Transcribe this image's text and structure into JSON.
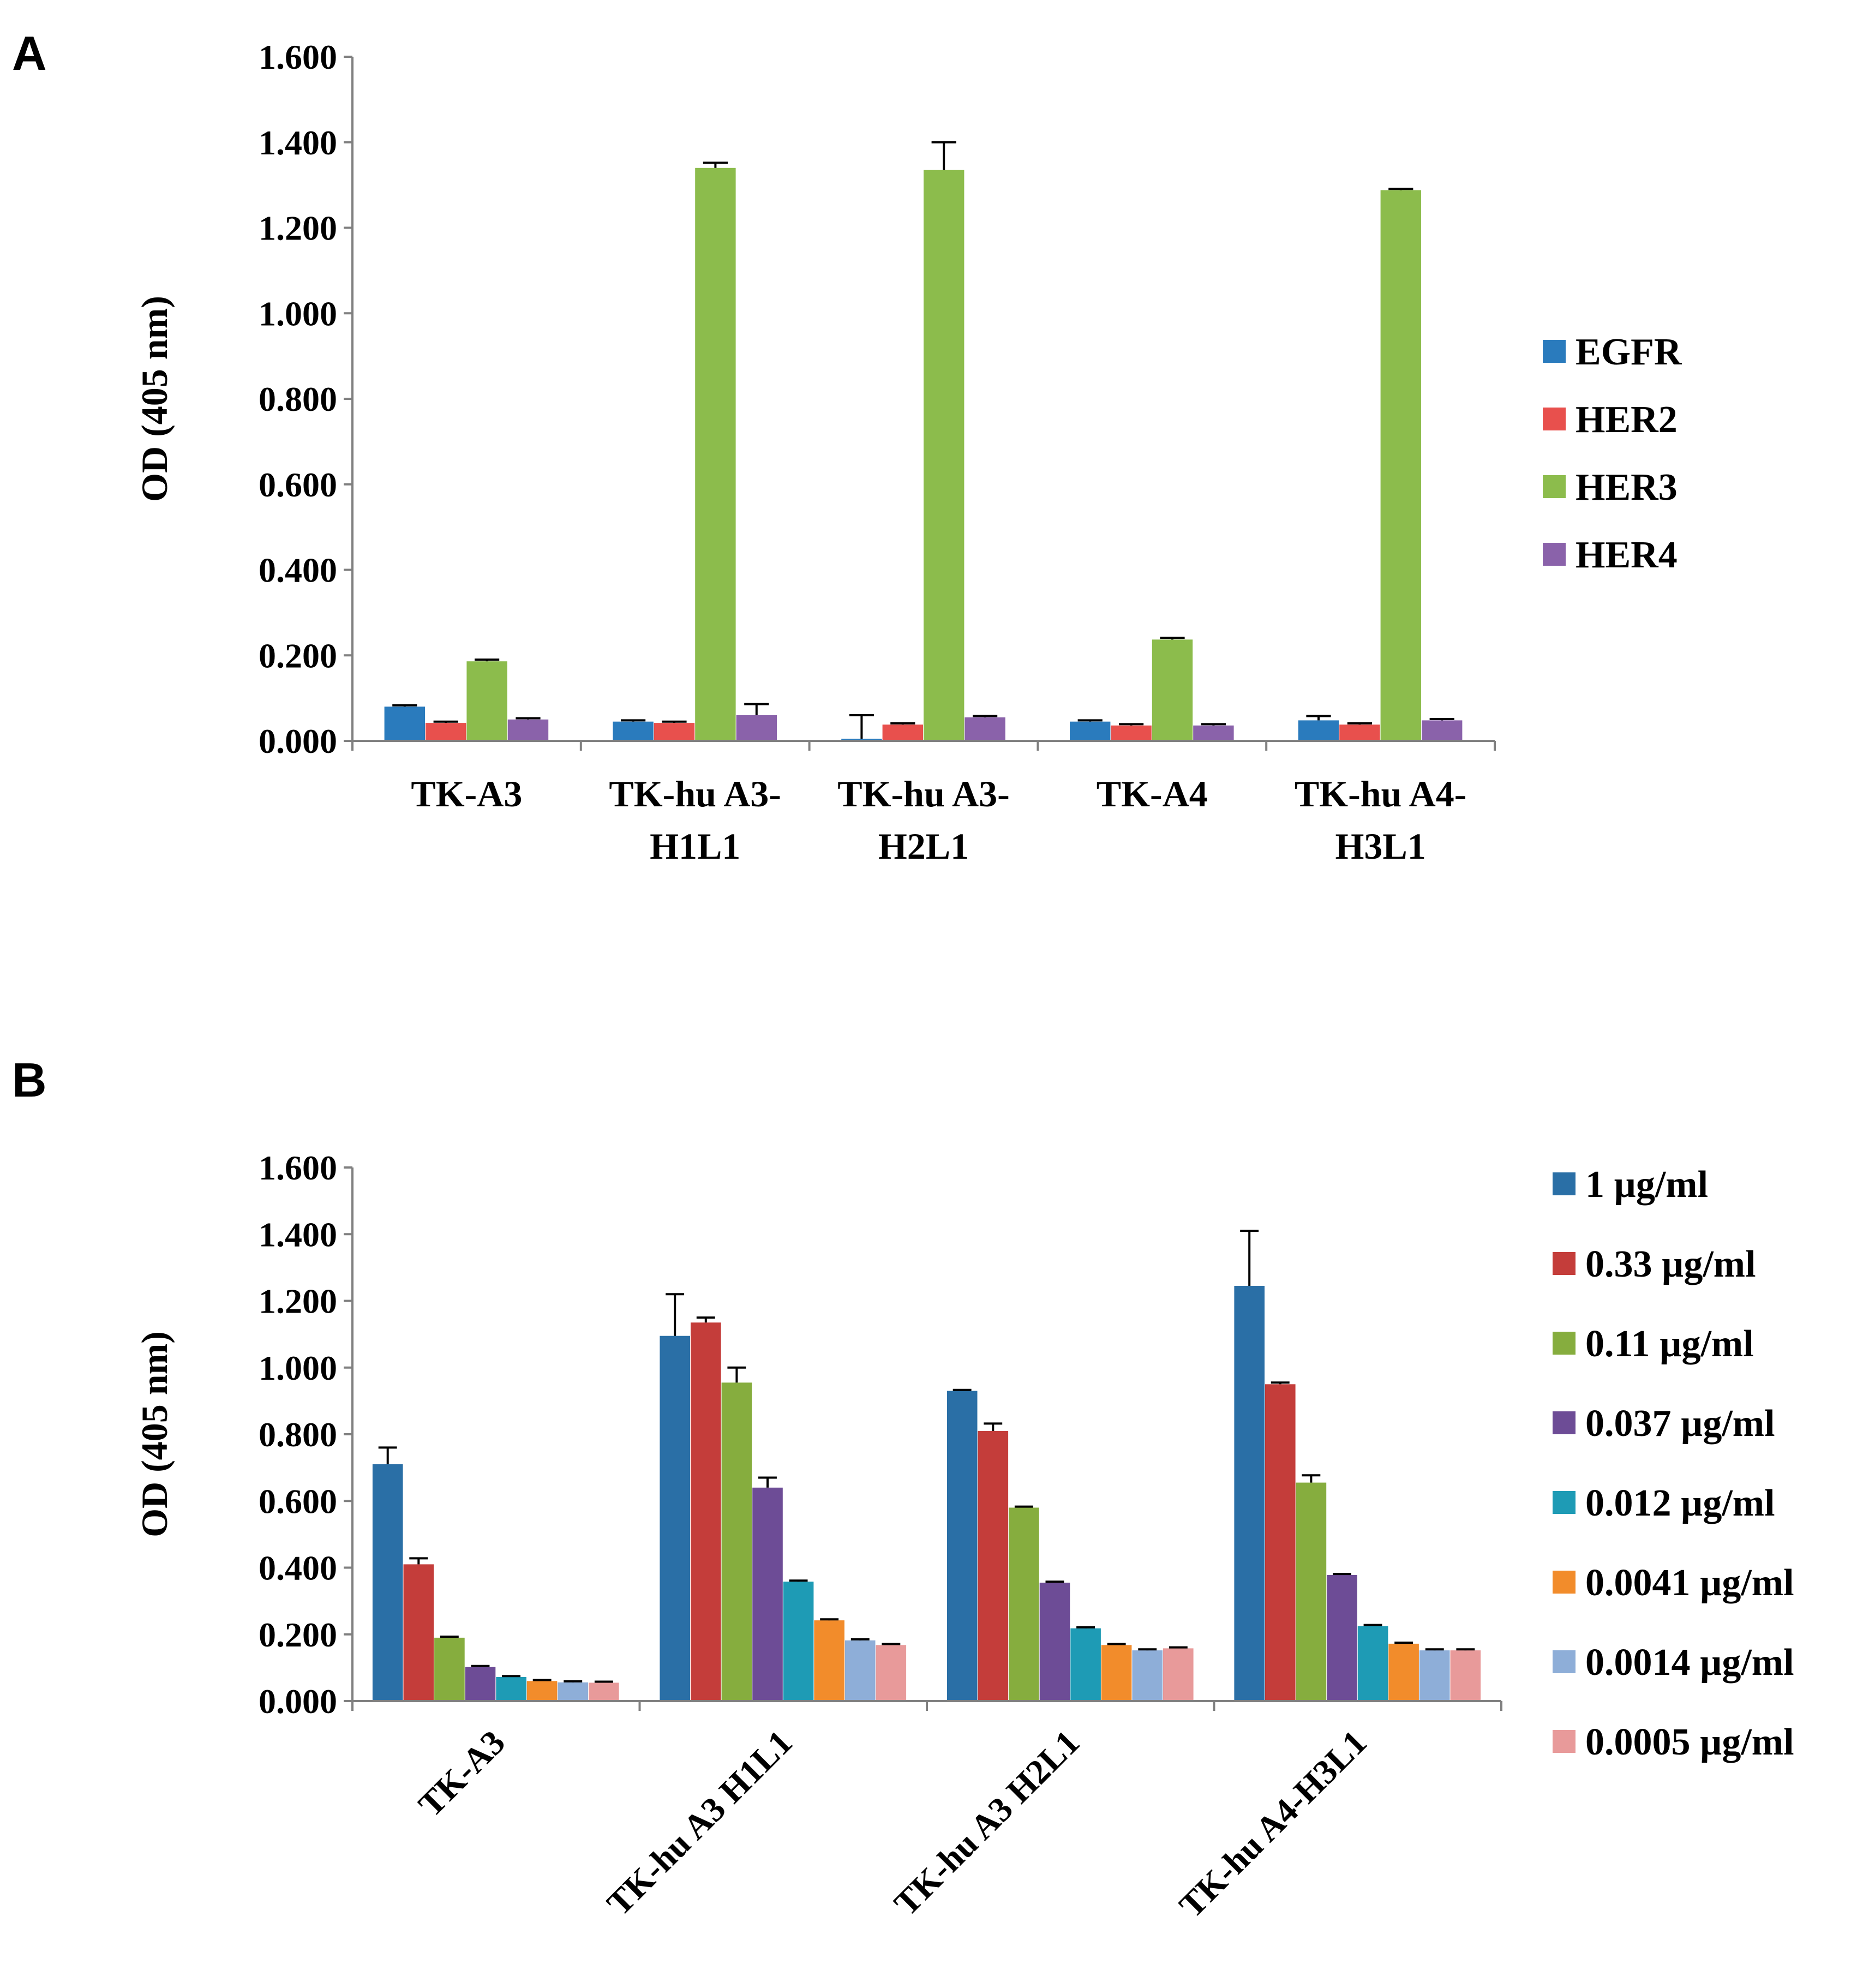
{
  "panels": [
    {
      "letter": "A"
    },
    {
      "letter": "B"
    }
  ],
  "chart_data": [
    {
      "type": "bar",
      "panel": "A",
      "title": "",
      "xlabel": "",
      "ylabel": "OD (405 nm)",
      "ylim": [
        0,
        1.6
      ],
      "yticks": [
        "0.000",
        "0.200",
        "0.400",
        "0.600",
        "0.800",
        "1.000",
        "1.200",
        "1.400",
        "1.600"
      ],
      "grid": false,
      "legend_position": "right",
      "categories": [
        [
          "TK-A3"
        ],
        [
          "TK-hu A3-",
          "H1L1"
        ],
        [
          "TK-hu A3-",
          "H2L1"
        ],
        [
          "TK-A4"
        ],
        [
          "TK-hu A4-",
          "H3L1"
        ]
      ],
      "series": [
        {
          "name": "EGFR",
          "color": "#2a7bbd",
          "values": [
            0.08,
            0.045,
            0.005,
            0.045,
            0.048
          ],
          "errors": [
            0.003,
            0.003,
            0.055,
            0.003,
            0.01
          ]
        },
        {
          "name": "HER2",
          "color": "#e8504d",
          "values": [
            0.042,
            0.042,
            0.038,
            0.036,
            0.038
          ],
          "errors": [
            0.003,
            0.003,
            0.003,
            0.003,
            0.003
          ]
        },
        {
          "name": "HER3",
          "color": "#8cbc4c",
          "values": [
            0.186,
            1.34,
            1.335,
            0.237,
            1.288
          ],
          "errors": [
            0.004,
            0.012,
            0.065,
            0.004,
            0.003
          ]
        },
        {
          "name": "HER4",
          "color": "#8a62aa",
          "values": [
            0.05,
            0.06,
            0.055,
            0.036,
            0.048
          ],
          "errors": [
            0.003,
            0.026,
            0.003,
            0.003,
            0.003
          ]
        }
      ]
    },
    {
      "type": "bar",
      "panel": "B",
      "title": "",
      "xlabel": "",
      "ylabel": "OD (405 nm)",
      "ylim": [
        0,
        1.6
      ],
      "yticks": [
        "0.000",
        "0.200",
        "0.400",
        "0.600",
        "0.800",
        "1.000",
        "1.200",
        "1.400",
        "1.600"
      ],
      "grid": false,
      "legend_position": "right",
      "categories": [
        "TK-A3",
        "TK-hu A3 H1L1",
        "TK-hu A3 H2L1",
        "TK-hu A4-H3L1"
      ],
      "series": [
        {
          "name": "1 µg/ml",
          "color": "#2a6fa6",
          "values": [
            0.71,
            1.095,
            0.93,
            1.245
          ],
          "errors": [
            0.05,
            0.125,
            0.003,
            0.165
          ]
        },
        {
          "name": "0.33 µg/ml",
          "color": "#c43d3a",
          "values": [
            0.41,
            1.135,
            0.81,
            0.95
          ],
          "errors": [
            0.018,
            0.015,
            0.022,
            0.005
          ]
        },
        {
          "name": "0.11 µg/ml",
          "color": "#86ad3e",
          "values": [
            0.19,
            0.955,
            0.58,
            0.655
          ],
          "errors": [
            0.003,
            0.045,
            0.003,
            0.022
          ]
        },
        {
          "name": "0.037 µg/ml",
          "color": "#6d4c96",
          "values": [
            0.102,
            0.64,
            0.355,
            0.378
          ],
          "errors": [
            0.003,
            0.03,
            0.003,
            0.003
          ]
        },
        {
          "name": "0.012 µg/ml",
          "color": "#1e9bb5",
          "values": [
            0.072,
            0.358,
            0.218,
            0.225
          ],
          "errors": [
            0.003,
            0.003,
            0.003,
            0.003
          ]
        },
        {
          "name": "0.0041 µg/ml",
          "color": "#f28c2b",
          "values": [
            0.06,
            0.242,
            0.168,
            0.172
          ],
          "errors": [
            0.003,
            0.003,
            0.003,
            0.003
          ]
        },
        {
          "name": "0.0014 µg/ml",
          "color": "#8eaed8",
          "values": [
            0.056,
            0.182,
            0.152,
            0.152
          ],
          "errors": [
            0.003,
            0.003,
            0.003,
            0.003
          ]
        },
        {
          "name": "0.0005 µg/ml",
          "color": "#e89a9a",
          "values": [
            0.055,
            0.168,
            0.158,
            0.152
          ],
          "errors": [
            0.003,
            0.003,
            0.003,
            0.003
          ]
        }
      ]
    }
  ]
}
